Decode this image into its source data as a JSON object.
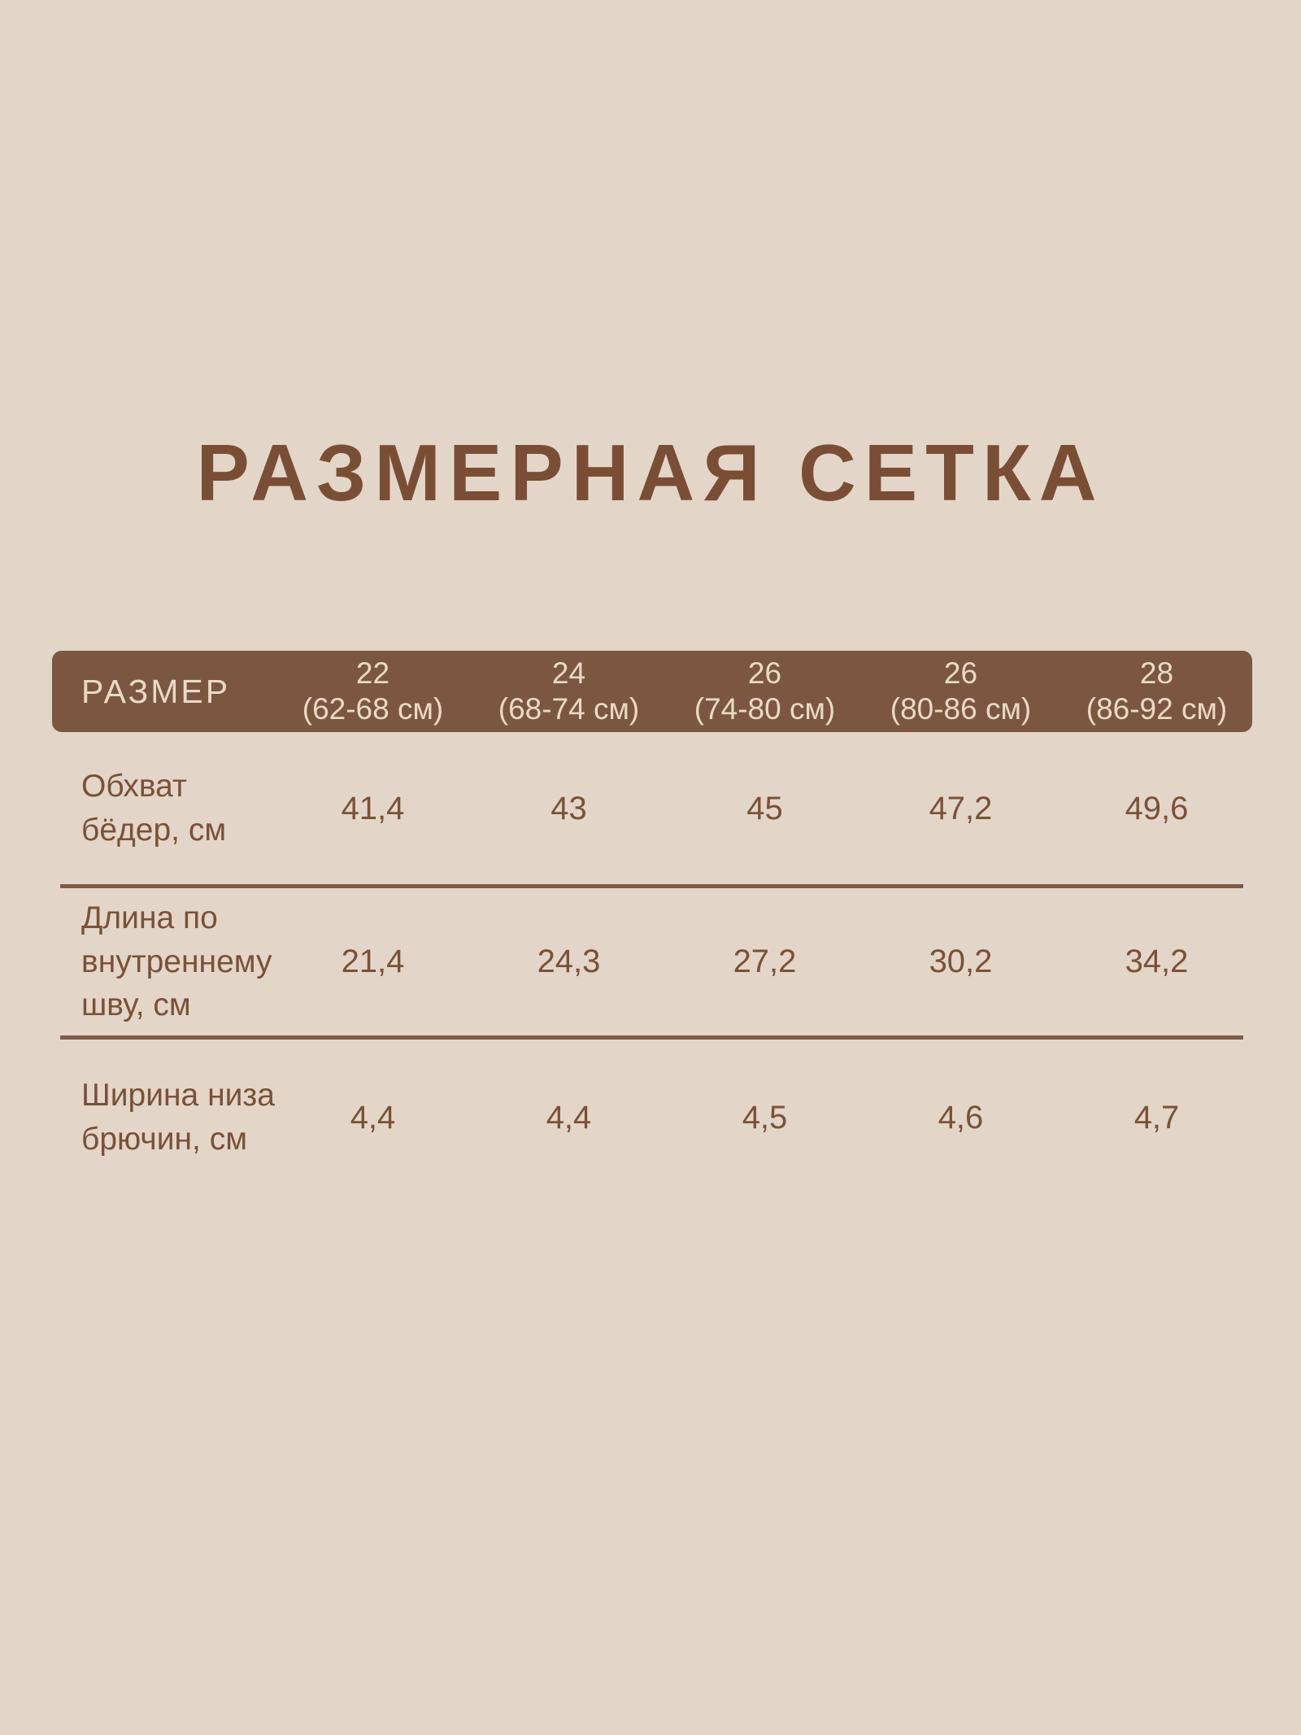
{
  "page": {
    "background": "#e3d6c8",
    "accent_brown": "#7b5742",
    "text_brown": "#7a5138",
    "header_text_color": "#e9dac5",
    "divider_color": "#7e5c4a"
  },
  "title": "РАЗМЕРНАЯ СЕТКА",
  "table": {
    "header": {
      "label": "РАЗМЕР",
      "columns": [
        {
          "size": "22",
          "range": "(62-68 см)"
        },
        {
          "size": "24",
          "range": "(68-74 см)"
        },
        {
          "size": "26",
          "range": "(74-80 см)"
        },
        {
          "size": "26",
          "range": "(80-86 см)"
        },
        {
          "size": "28",
          "range": "(86-92 см)"
        }
      ]
    },
    "rows": [
      {
        "label": "Обхват\nбёдер, см",
        "values": [
          "41,4",
          "43",
          "45",
          "47,2",
          "49,6"
        ]
      },
      {
        "label": "Длина по\nвнутреннему\nшву, см",
        "values": [
          "21,4",
          "24,3",
          "27,2",
          "30,2",
          "34,2"
        ]
      },
      {
        "label": "Ширина низа\nбрючин, см",
        "values": [
          "4,4",
          "4,4",
          "4,5",
          "4,6",
          "4,7"
        ]
      }
    ]
  },
  "chart_data": {
    "type": "table",
    "title": "РАЗМЕРНАЯ СЕТКА",
    "columns": [
      "РАЗМЕР",
      "22 (62-68 см)",
      "24 (68-74 см)",
      "26 (74-80 см)",
      "26 (80-86 см)",
      "28 (86-92 см)"
    ],
    "rows": [
      [
        "Обхват бёдер, см",
        "41,4",
        "43",
        "45",
        "47,2",
        "49,6"
      ],
      [
        "Длина по внутреннему шву, см",
        "21,4",
        "24,3",
        "27,2",
        "30,2",
        "34,2"
      ],
      [
        "Ширина низа брючин, см",
        "4,4",
        "4,4",
        "4,5",
        "4,6",
        "4,7"
      ]
    ]
  }
}
